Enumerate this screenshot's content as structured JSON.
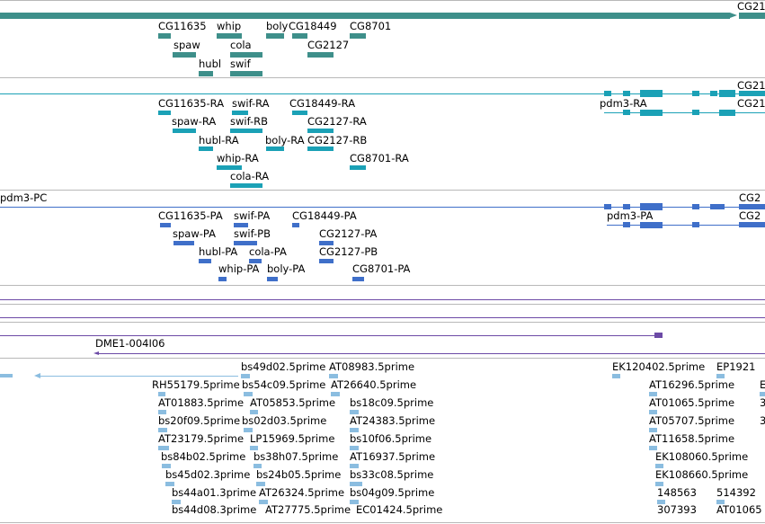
{
  "colors": {
    "gene": "#3e8f8a",
    "transcript_ra": "#1ba1b6",
    "transcript_pa": "#3f6fc9",
    "track_purple": "#6c4aa6",
    "est": "#8bbde0",
    "separator": "#b8b8b8"
  },
  "gene_track": {
    "labels": [
      "CG11635",
      "whip",
      "boly",
      "CG18449",
      "CG8701",
      "spaw",
      "cola",
      "CG2127",
      "hubl",
      "swif",
      "CG21"
    ]
  },
  "ra_track": {
    "labels": [
      "CG11635-RA",
      "swif-RA",
      "CG18449-RA",
      "spaw-RA",
      "swif-RB",
      "CG2127-RA",
      "hubl-RA",
      "boly-RA",
      "CG2127-RB",
      "whip-RA",
      "CG8701-RA",
      "cola-RA",
      "pdm3-RA",
      "CG21",
      "CG21"
    ]
  },
  "pa_track": {
    "labels": [
      "pdm3-PC",
      "CG11635-PA",
      "swif-PA",
      "CG18449-PA",
      "spaw-PA",
      "swif-PB",
      "CG2127-PA",
      "hubl-PA",
      "cola-PA",
      "CG2127-PB",
      "whip-PA",
      "boly-PA",
      "CG8701-PA",
      "pdm3-PA",
      "CG2",
      "CG2"
    ]
  },
  "clone_track": {
    "label": "DME1-004I06"
  },
  "est_track": {
    "labels": [
      "bs49d02.5prime",
      "AT08983.5prime",
      "EK120402.5prime",
      "EP1921",
      "RH55179.5prime",
      "bs54c09.5prime",
      "AT26640.5prime",
      "AT16296.5prime",
      "E",
      "AT01883.5prime",
      "AT05853.5prime",
      "bs18c09.5prime",
      "AT01065.5prime",
      "3",
      "bs20f09.5prime",
      "bs02d03.5prime",
      "AT24383.5prime",
      "AT05707.5prime",
      "3",
      "AT23179.5prime",
      "LP15969.5prime",
      "bs10f06.5prime",
      "AT11658.5prime",
      "bs84b02.5prime",
      "bs38h07.5prime",
      "AT16937.5prime",
      "EK108060.5prime",
      "bs45d02.3prime",
      "bs24b05.5prime",
      "bs33c08.5prime",
      "EK108660.5prime",
      "bs44a01.3prime",
      "AT26324.5prime",
      "bs04g09.5prime",
      "148563",
      "514392",
      "bs44d08.3prime",
      "AT27775.5prime",
      "EC01424.5prime",
      "307393",
      "AT01065"
    ]
  }
}
